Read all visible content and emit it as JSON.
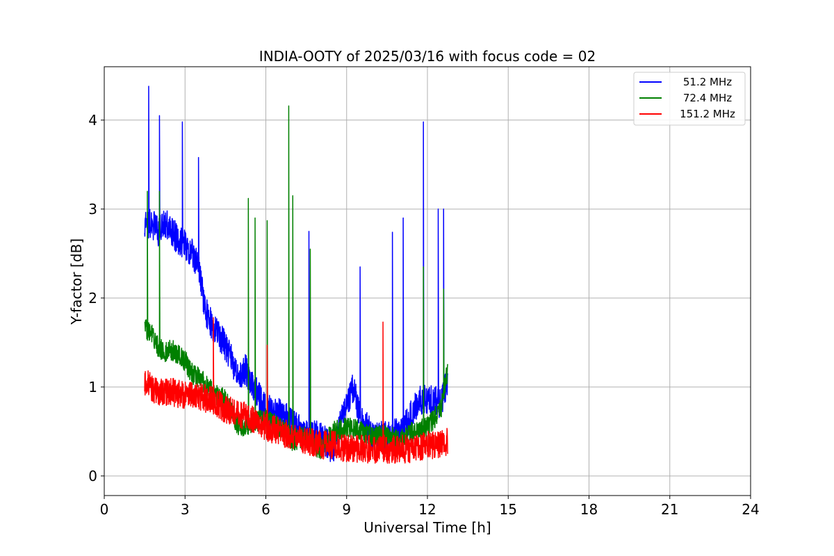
{
  "chart_data": {
    "type": "line",
    "title": "INDIA-OOTY of 2025/03/16 with focus code = 02",
    "xlabel": "Universal Time [h]",
    "ylabel": "Y-factor [dB]",
    "xlim": [
      0,
      24
    ],
    "ylim": [
      -0.22,
      4.6
    ],
    "xticks": [
      0,
      3,
      6,
      9,
      12,
      15,
      18,
      21,
      24
    ],
    "yticks": [
      0,
      1,
      2,
      3,
      4
    ],
    "grid": true,
    "legend_position": "top-right",
    "series": [
      {
        "name": "51.2 MHz",
        "color": "#0000ff",
        "x": [
          1.5,
          1.75,
          2.0,
          2.25,
          2.5,
          2.75,
          3.0,
          3.25,
          3.5,
          3.75,
          4.0,
          4.25,
          4.5,
          4.75,
          5.0,
          5.25,
          5.5,
          5.75,
          6.0,
          6.5,
          7.0,
          7.5,
          8.0,
          8.5,
          9.0,
          9.25,
          9.5,
          9.75,
          10.0,
          10.5,
          11.0,
          11.25,
          11.5,
          11.75,
          12.0,
          12.25,
          12.5,
          12.75
        ],
        "y": [
          2.8,
          2.85,
          2.75,
          2.85,
          2.75,
          2.65,
          2.6,
          2.5,
          2.35,
          1.85,
          1.7,
          1.6,
          1.45,
          1.3,
          1.1,
          1.2,
          1.0,
          0.9,
          0.75,
          0.7,
          0.6,
          0.45,
          0.45,
          0.3,
          0.8,
          1.0,
          0.65,
          0.55,
          0.45,
          0.45,
          0.5,
          0.6,
          0.75,
          0.85,
          0.85,
          0.85,
          0.8,
          1.1
        ],
        "spikes": [
          {
            "x": 1.65,
            "y": 4.38
          },
          {
            "x": 2.05,
            "y": 4.05
          },
          {
            "x": 2.9,
            "y": 3.98
          },
          {
            "x": 3.5,
            "y": 3.58
          },
          {
            "x": 7.6,
            "y": 2.75
          },
          {
            "x": 9.5,
            "y": 2.35
          },
          {
            "x": 10.7,
            "y": 2.74
          },
          {
            "x": 11.1,
            "y": 2.9
          },
          {
            "x": 11.85,
            "y": 3.98
          },
          {
            "x": 12.4,
            "y": 3.0
          },
          {
            "x": 12.6,
            "y": 3.0
          }
        ]
      },
      {
        "name": "72.4 MHz",
        "color": "#008000",
        "x": [
          1.5,
          1.75,
          2.0,
          2.25,
          2.5,
          2.75,
          3.0,
          3.25,
          3.5,
          3.75,
          4.0,
          4.5,
          5.0,
          5.5,
          6.0,
          6.5,
          7.0,
          7.5,
          8.0,
          8.5,
          9.0,
          9.5,
          10.0,
          10.5,
          11.0,
          11.5,
          12.0,
          12.5,
          12.75
        ],
        "y": [
          1.65,
          1.6,
          1.45,
          1.4,
          1.42,
          1.35,
          1.3,
          1.15,
          1.1,
          1.05,
          0.95,
          0.85,
          0.55,
          0.6,
          0.65,
          0.55,
          0.4,
          0.45,
          0.3,
          0.5,
          0.55,
          0.5,
          0.45,
          0.45,
          0.4,
          0.5,
          0.55,
          0.75,
          1.2
        ],
        "spikes": [
          {
            "x": 1.6,
            "y": 3.2
          },
          {
            "x": 2.05,
            "y": 3.2
          },
          {
            "x": 5.35,
            "y": 3.12
          },
          {
            "x": 5.6,
            "y": 2.9
          },
          {
            "x": 6.05,
            "y": 2.87
          },
          {
            "x": 6.85,
            "y": 4.16
          },
          {
            "x": 7.0,
            "y": 3.15
          },
          {
            "x": 7.65,
            "y": 2.55
          },
          {
            "x": 11.85,
            "y": 2.35
          },
          {
            "x": 12.6,
            "y": 2.1
          }
        ]
      },
      {
        "name": "151.2 MHz",
        "color": "#ff0000",
        "x": [
          1.5,
          2.0,
          2.5,
          3.0,
          3.5,
          4.0,
          4.5,
          5.0,
          5.5,
          6.0,
          6.5,
          7.0,
          7.5,
          8.0,
          8.5,
          9.0,
          9.5,
          10.0,
          10.5,
          11.0,
          11.5,
          12.0,
          12.5,
          12.75
        ],
        "y": [
          1.05,
          0.95,
          0.95,
          0.9,
          0.9,
          0.85,
          0.75,
          0.7,
          0.65,
          0.55,
          0.5,
          0.45,
          0.4,
          0.35,
          0.35,
          0.3,
          0.3,
          0.3,
          0.3,
          0.3,
          0.3,
          0.35,
          0.35,
          0.4
        ],
        "spikes": [
          {
            "x": 4.05,
            "y": 1.78
          },
          {
            "x": 6.05,
            "y": 1.47
          },
          {
            "x": 10.35,
            "y": 1.73
          }
        ]
      }
    ]
  }
}
